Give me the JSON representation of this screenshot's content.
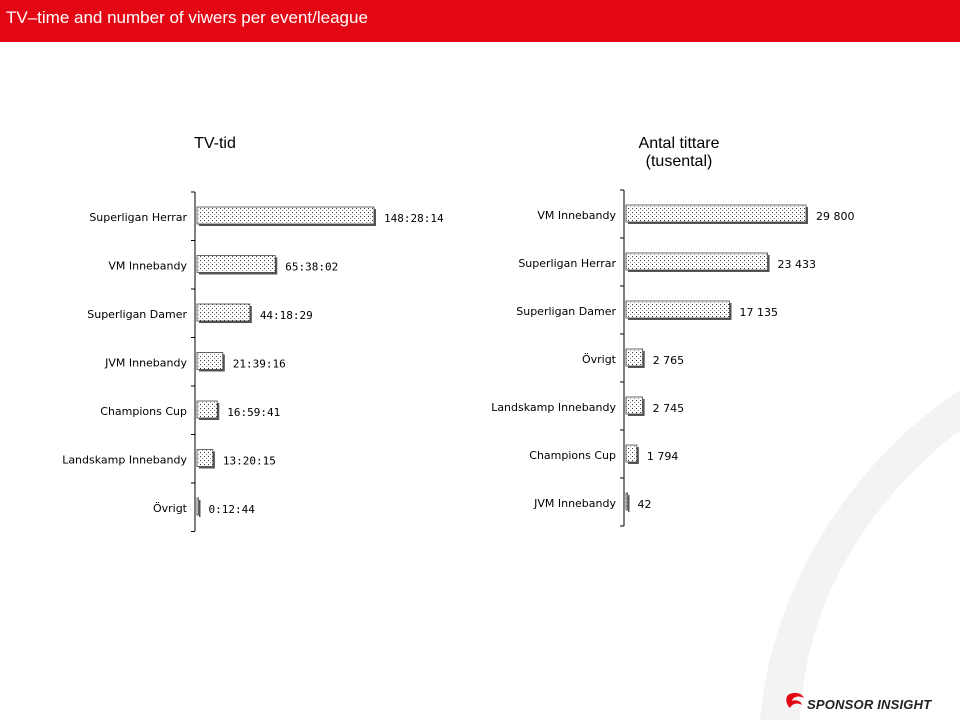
{
  "page": {
    "title": "TV–time and number of viwers per event/league"
  },
  "brand": {
    "name": "SPONSOR INSIGHT",
    "accent": "#e30613"
  },
  "chart_data": [
    {
      "type": "bar",
      "orientation": "horizontal",
      "title": "TV-tid",
      "subtitle": "",
      "unit": "hh:mm:ss",
      "categories": [
        "Superligan Herrar",
        "VM Innebandy",
        "Superligan Damer",
        "JVM Innebandy",
        "Champions Cup",
        "Landskamp Innebandy",
        "Övrigt"
      ],
      "labels": [
        "148:28:14",
        "65:38:02",
        "44:18:29",
        "21:39:16",
        "16:59:41",
        "13:20:15",
        "0:12:44"
      ],
      "values": [
        148.47,
        65.63,
        44.31,
        21.65,
        16.99,
        13.34,
        0.21
      ],
      "grid": false,
      "legend": "none"
    },
    {
      "type": "bar",
      "orientation": "horizontal",
      "title": "Antal tittare",
      "subtitle": "(tusental)",
      "categories": [
        "VM Innebandy",
        "Superligan Herrar",
        "Superligan Damer",
        "Övrigt",
        "Landskamp Innebandy",
        "Champions Cup",
        "JVM Innebandy"
      ],
      "labels": [
        "29 800",
        "23 433",
        "17 135",
        "2 765",
        "2 745",
        "1 794",
        "42"
      ],
      "values": [
        29800,
        23433,
        17135,
        2765,
        2745,
        1794,
        42
      ],
      "grid": false,
      "legend": "none"
    }
  ]
}
